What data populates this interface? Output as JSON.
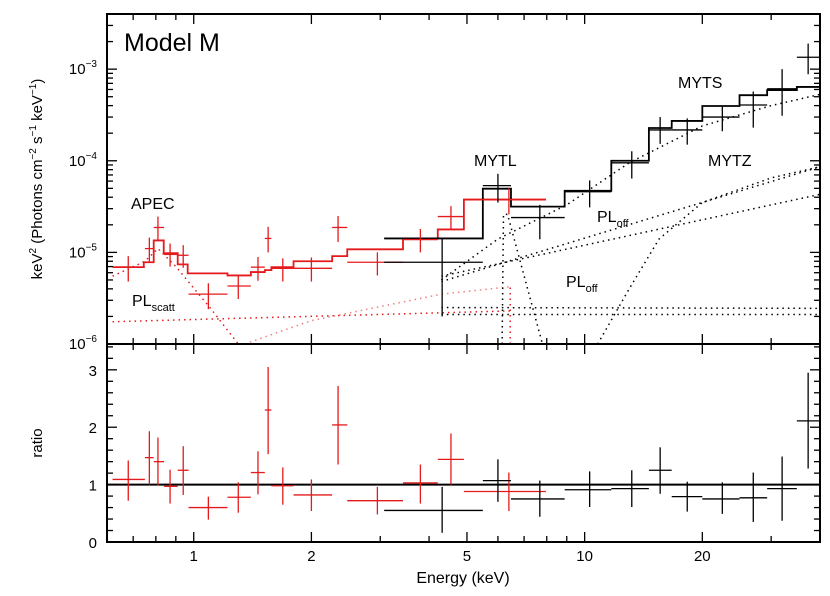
{
  "chart_data": {
    "type": "line",
    "title": "Model M",
    "xlabel": "Energy (keV)",
    "xscale": "log",
    "xlim": [
      0.6,
      40
    ],
    "xticks": [
      "1",
      "2",
      "5",
      "10",
      "20"
    ],
    "xtick_values": [
      1,
      2,
      5,
      10,
      20
    ],
    "panels": [
      {
        "name": "spectrum",
        "yscale": "log",
        "ylim": [
          1e-06,
          0.004
        ],
        "ylabel_parts": [
          {
            "t": "keV",
            "sup": false
          },
          {
            "t": "2",
            "sup": true
          },
          {
            "t": " (Photons cm",
            "sup": false
          },
          {
            "t": "−2",
            "sup": true
          },
          {
            "t": " s",
            "sup": false
          },
          {
            "t": "−1",
            "sup": true
          },
          {
            "t": " keV",
            "sup": false
          },
          {
            "t": "−1",
            "sup": true
          },
          {
            "t": ")",
            "sup": false
          }
        ],
        "yticks": [
          {
            "value": 1e-06,
            "base": "10",
            "exp": "−6"
          },
          {
            "value": 1e-05,
            "base": "10",
            "exp": "−5"
          },
          {
            "value": 0.0001,
            "base": "10",
            "exp": "−4"
          },
          {
            "value": 0.001,
            "base": "10",
            "exp": "−3"
          }
        ],
        "annotations": {
          "apec": "APEC",
          "pl_scatt_main": "PL",
          "pl_scatt_sub": "scatt",
          "mytl": "MYTL",
          "myts": "MYTS",
          "mytz": "MYTZ",
          "pl_off_upper_main": "PL",
          "pl_off_upper_sub": "off",
          "pl_off_lower_main": "PL",
          "pl_off_lower_sub": "off"
        },
        "point_columns": [
          "E",
          "E_lo",
          "E_hi",
          "y",
          "y_lo",
          "y_hi"
        ],
        "series": [
          {
            "name": "red-data",
            "color": "#e41a1c",
            "points": [
              [
                0.68,
                0.62,
                0.75,
                6.9e-06,
                4.8e-06,
                9.1e-06
              ],
              [
                0.77,
                0.75,
                0.79,
                1.1e-05,
                7.8e-06,
                1.45e-05
              ],
              [
                0.81,
                0.79,
                0.84,
                1.87e-05,
                1.35e-05,
                2.46e-05
              ],
              [
                0.87,
                0.84,
                0.91,
                9.5e-06,
                7e-06,
                1.25e-05
              ],
              [
                0.94,
                0.91,
                0.97,
                9.3e-06,
                6.8e-06,
                1.2e-05
              ],
              [
                1.09,
                0.97,
                1.22,
                3.5e-06,
                2.4e-06,
                4.6e-06
              ],
              [
                1.3,
                1.22,
                1.4,
                4.3e-06,
                3.1e-06,
                5.7e-06
              ],
              [
                1.46,
                1.4,
                1.52,
                6.9e-06,
                4.9e-06,
                8.9e-06
              ],
              [
                1.55,
                1.52,
                1.58,
                1.42e-05,
                1e-05,
                1.9e-05
              ],
              [
                1.69,
                1.58,
                1.8,
                6.7e-06,
                4.8e-06,
                8.6e-06
              ],
              [
                2.0,
                1.8,
                2.26,
                6.7e-06,
                4.8e-06,
                8.8e-06
              ],
              [
                2.34,
                2.26,
                2.47,
                1.87e-05,
                1.3e-05,
                2.5e-05
              ],
              [
                2.95,
                2.47,
                3.43,
                7.8e-06,
                5.6e-06,
                1e-05
              ],
              [
                3.8,
                3.43,
                4.21,
                1.38e-05,
                1e-05,
                1.8e-05
              ],
              [
                4.55,
                4.21,
                4.91,
                2.46e-05,
                1.8e-05,
                3.2e-05
              ],
              [
                6.4,
                4.91,
                7.96,
                3.77e-05,
                2.6e-05,
                5e-05
              ]
            ]
          },
          {
            "name": "black-data",
            "color": "#000000",
            "points": [
              [
                4.32,
                3.07,
                5.49,
                7.8e-06,
                2e-06,
                1.42e-05
              ],
              [
                6.0,
                5.49,
                6.48,
                5.35e-05,
                3.5e-05,
                7.2e-05
              ],
              [
                7.68,
                6.48,
                8.89,
                2.4e-05,
                1.39e-05,
                3.3e-05
              ],
              [
                10.3,
                8.89,
                11.7,
                4.6e-05,
                3.1e-05,
                6.1e-05
              ],
              [
                13.2,
                11.7,
                14.6,
                9.5e-05,
                6.4e-05,
                0.000127
              ],
              [
                15.6,
                14.6,
                16.7,
                0.000217,
                0.000153,
                0.0003
              ],
              [
                18.3,
                16.7,
                20.0,
                0.000217,
                0.00015,
                0.00029
              ],
              [
                22.5,
                20.0,
                24.9,
                0.0003,
                0.00021,
                0.00039
              ],
              [
                27.0,
                24.9,
                29.3,
                0.000406,
                0.00023,
                0.00057
              ],
              [
                32.0,
                29.3,
                34.9,
                0.00061,
                0.00031,
                0.001
              ],
              [
                37.3,
                34.9,
                39.8,
                0.00135,
                0.00088,
                0.0019
              ]
            ]
          }
        ],
        "models": [
          {
            "name": "red-model",
            "color": "#e41a1c",
            "edges": [
              0.621,
              0.745,
              0.79,
              0.838,
              0.91,
              0.965,
              1.22,
              1.4,
              1.52,
              1.58,
              1.8,
              2.26,
              2.47,
              3.43,
              4.21,
              4.91,
              7.96
            ],
            "values": [
              6.9e-06,
              7.8e-06,
              1.35e-05,
              9.8e-06,
              7.4e-06,
              5.9e-06,
              5.6e-06,
              6.1e-06,
              6.4e-06,
              6.9e-06,
              8e-06,
              9.1e-06,
              1.08e-05,
              1.42e-05,
              1.78e-05,
              3.77e-05
            ]
          },
          {
            "name": "black-model",
            "color": "#000000",
            "edges": [
              3.07,
              5.49,
              6.48,
              8.89,
              11.7,
              14.6,
              16.7,
              20.0,
              24.9,
              29.3,
              34.9,
              39.8
            ],
            "values": [
              1.42e-05,
              4.96e-05,
              3.16e-05,
              4.7e-05,
              0.0001,
              0.000228,
              0.000272,
              0.000396,
              0.00052,
              0.00059,
              0.00064
            ]
          }
        ],
        "components": [
          {
            "name": "red-pl-scatt",
            "color": "#e41a1c",
            "points": [
              [
                0.62,
                1.75e-06
              ],
              [
                6.5,
                2.3e-06
              ]
            ]
          },
          {
            "name": "red-apec",
            "color": "#e41a1c",
            "points": [
              [
                0.62,
                5.5e-06
              ],
              [
                0.75,
                8e-06
              ],
              [
                0.81,
                1.1e-05
              ],
              [
                0.9,
                7e-06
              ],
              [
                1.1,
                2.5e-06
              ],
              [
                1.3,
                1e-06
              ]
            ]
          },
          {
            "name": "red-pl-off",
            "color": "#f08080",
            "points": [
              [
                1.35,
                1e-06
              ],
              [
                2.0,
                1.8e-06
              ],
              [
                4.3,
                3.5e-06
              ],
              [
                6.4,
                4.2e-06
              ]
            ]
          },
          {
            "name": "red-mytl",
            "color": "#e41a1c",
            "points": [
              [
                6.45,
                1e-06
              ],
              [
                6.45,
                4.5e-06
              ]
            ]
          },
          {
            "name": "black-mytl",
            "color": "#000000",
            "points": [
              [
                6.15,
                1e-06
              ],
              [
                6.2,
                2.6e-05
              ],
              [
                6.35,
                2.6e-05
              ],
              [
                7.8,
                1e-06
              ]
            ]
          },
          {
            "name": "black-myts",
            "color": "#000000",
            "points": [
              [
                4.3,
                5e-06
              ],
              [
                6.0,
                1.4e-05
              ],
              [
                9.0,
                3.3e-05
              ],
              [
                13,
                9.5e-05
              ],
              [
                20,
                0.00024
              ],
              [
                30,
                0.0004
              ],
              [
                40,
                0.00053
              ]
            ]
          },
          {
            "name": "black-pl-off-upper",
            "color": "#000000",
            "points": [
              [
                4.3,
                4.8e-06
              ],
              [
                40,
                8.6e-05
              ]
            ]
          },
          {
            "name": "black-pl-off-lower",
            "color": "#000000",
            "points": [
              [
                4.3,
                5.5e-06
              ],
              [
                40,
                4.3e-05
              ]
            ]
          },
          {
            "name": "black-mytz",
            "color": "#000000",
            "points": [
              [
                10.8,
                1e-06
              ],
              [
                13,
                4e-06
              ],
              [
                15.5,
                1.4e-05
              ],
              [
                20,
                3.5e-05
              ],
              [
                30,
                6.5e-05
              ],
              [
                40,
                8.6e-05
              ]
            ]
          },
          {
            "name": "black-pl-scatt-1",
            "color": "#000000",
            "points": [
              [
                4.3,
                2.5e-06
              ],
              [
                40,
                2.45e-06
              ]
            ]
          },
          {
            "name": "black-pl-scatt-2",
            "color": "#000000",
            "points": [
              [
                4.3,
                2.1e-06
              ],
              [
                40,
                2.1e-06
              ]
            ]
          }
        ]
      },
      {
        "name": "ratio",
        "yscale": "linear",
        "ylabel": "ratio",
        "ylim": [
          0,
          3.45
        ],
        "yticks": [
          {
            "value": 0,
            "label": "0"
          },
          {
            "value": 1,
            "label": "1"
          },
          {
            "value": 2,
            "label": "2"
          },
          {
            "value": 3,
            "label": "3"
          }
        ],
        "reference_line": 1,
        "series": [
          {
            "name": "red-ratio",
            "color": "#e41a1c",
            "points": [
              [
                0.68,
                0.62,
                0.75,
                1.09,
                0.72,
                1.42
              ],
              [
                0.77,
                0.75,
                0.79,
                1.47,
                1.0,
                1.93
              ],
              [
                0.81,
                0.79,
                0.84,
                1.4,
                0.98,
                1.82
              ],
              [
                0.87,
                0.84,
                0.91,
                0.97,
                0.67,
                1.26
              ],
              [
                0.94,
                0.91,
                0.97,
                1.25,
                0.82,
                1.67
              ],
              [
                1.09,
                0.97,
                1.22,
                0.6,
                0.39,
                0.79
              ],
              [
                1.3,
                1.22,
                1.4,
                0.78,
                0.51,
                1.04
              ],
              [
                1.46,
                1.4,
                1.52,
                1.21,
                0.83,
                1.58
              ],
              [
                1.55,
                1.52,
                1.58,
                2.3,
                1.53,
                3.05
              ],
              [
                1.69,
                1.58,
                1.8,
                0.98,
                0.65,
                1.3
              ],
              [
                2.0,
                1.8,
                2.26,
                0.82,
                0.54,
                1.09
              ],
              [
                2.34,
                2.26,
                2.47,
                2.04,
                1.35,
                2.72
              ],
              [
                2.95,
                2.47,
                3.43,
                0.72,
                0.48,
                0.96
              ],
              [
                3.8,
                3.43,
                4.21,
                1.03,
                0.67,
                1.35
              ],
              [
                4.55,
                4.21,
                4.91,
                1.44,
                1.0,
                1.89
              ],
              [
                6.4,
                4.91,
                7.96,
                0.88,
                0.54,
                1.21
              ]
            ]
          },
          {
            "name": "black-ratio",
            "color": "#000000",
            "points": [
              [
                4.32,
                3.07,
                5.49,
                0.55,
                0.16,
                0.96
              ],
              [
                6.0,
                5.49,
                6.48,
                1.07,
                0.7,
                1.44
              ],
              [
                7.68,
                6.48,
                8.89,
                0.75,
                0.44,
                1.07
              ],
              [
                10.3,
                8.89,
                11.7,
                0.91,
                0.61,
                1.23
              ],
              [
                13.2,
                11.7,
                14.6,
                0.93,
                0.61,
                1.25
              ],
              [
                15.6,
                14.6,
                16.7,
                1.25,
                0.84,
                1.65
              ],
              [
                18.3,
                16.7,
                20.0,
                0.79,
                0.53,
                1.05
              ],
              [
                22.5,
                20.0,
                24.9,
                0.75,
                0.49,
                1.04
              ],
              [
                27.0,
                24.9,
                29.3,
                0.77,
                0.35,
                1.21
              ],
              [
                32.0,
                29.3,
                34.9,
                0.93,
                0.37,
                1.49
              ],
              [
                37.3,
                34.9,
                39.8,
                2.11,
                1.28,
                2.95
              ]
            ]
          }
        ]
      }
    ]
  }
}
